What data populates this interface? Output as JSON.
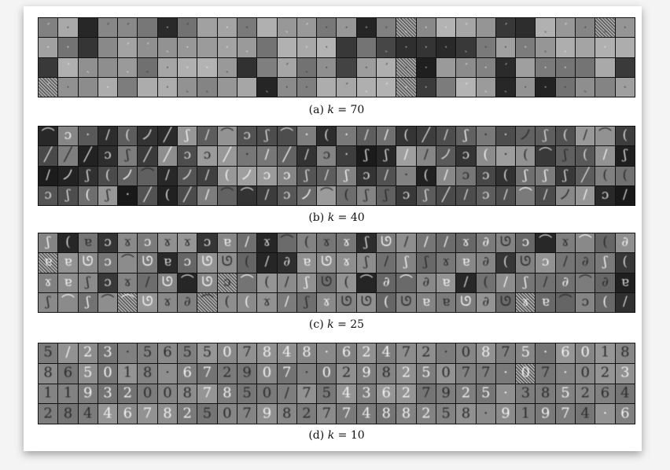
{
  "figure": {
    "panels": [
      {
        "id": "a",
        "label": "(a)",
        "variable": "k",
        "equals": "=",
        "value": "70",
        "tone": "filters",
        "seed": 11,
        "glyphs": "",
        "noise_cells": [
          18,
          28,
          78,
          90,
          108
        ]
      },
      {
        "id": "b",
        "label": "(b)",
        "variable": "k",
        "equals": "=",
        "value": "40",
        "tone": "strokes",
        "seed": 23,
        "glyphs": "",
        "noise_cells": []
      },
      {
        "id": "c",
        "label": "(c)",
        "variable": "k",
        "equals": "=",
        "value": "25",
        "tone": "parts",
        "seed": 37,
        "glyphs": "",
        "noise_cells": [
          30,
          69,
          94,
          98,
          114
        ]
      },
      {
        "id": "d",
        "label": "(d)",
        "variable": "k",
        "equals": "=",
        "value": "10",
        "tone": "digits",
        "seed": 41,
        "glyphs": "5/23·565507848·62472·0875·6018865018·672907·029825077·07·023119320087850/7543627925·3852642844678250798277488258·91974·6",
        "noise_cells": [
          54
        ]
      }
    ],
    "colors": {
      "grid": "#111111",
      "background": "#ffffff"
    }
  }
}
